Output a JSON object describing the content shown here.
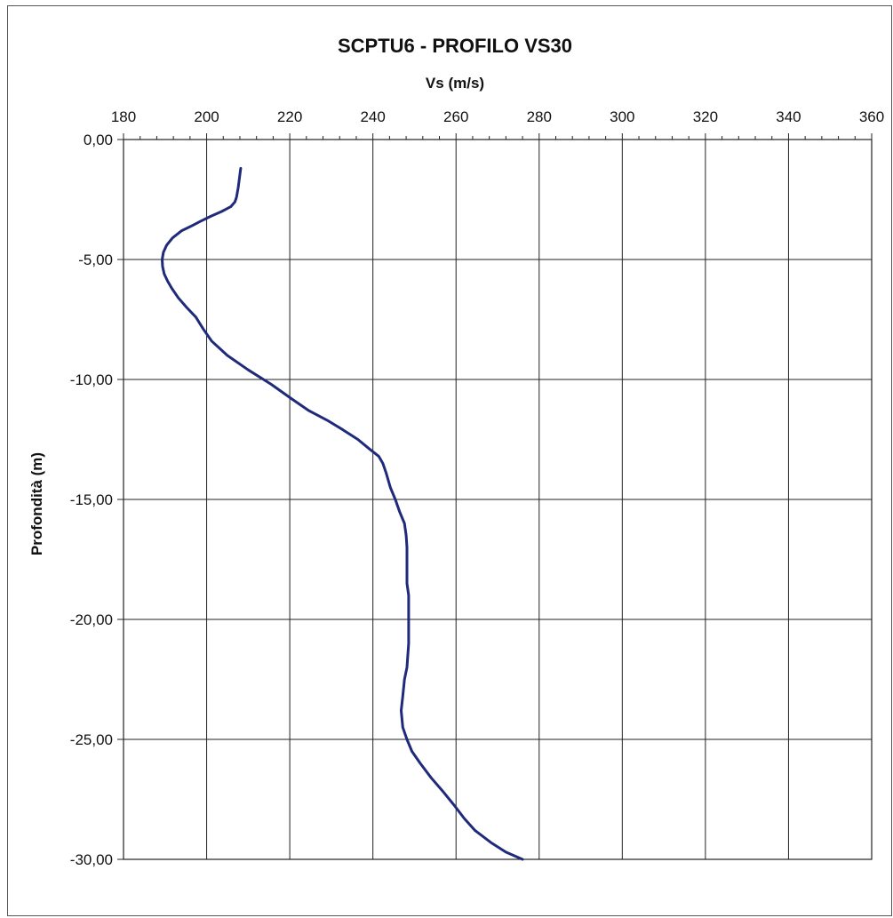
{
  "chart_data": {
    "type": "line",
    "title": "SCPTU6 - PROFILO VS30",
    "xlabel": "Vs (m/s)",
    "ylabel": "Profondità (m)",
    "xlim": [
      180,
      360
    ],
    "ylim": [
      -30,
      0
    ],
    "x_ticks": [
      180,
      200,
      220,
      240,
      260,
      280,
      300,
      320,
      340,
      360
    ],
    "x_tick_labels": [
      "180",
      "200",
      "220",
      "240",
      "260",
      "280",
      "300",
      "320",
      "340",
      "360"
    ],
    "y_ticks": [
      0,
      -5,
      -10,
      -15,
      -20,
      -25,
      -30
    ],
    "y_tick_labels": [
      "0,00",
      "-5,00",
      "-10,00",
      "-15,00",
      "-20,00",
      "-25,00",
      "-30,00"
    ],
    "x_minor_step": 4,
    "grid": true,
    "line_color": "#1f2a7a",
    "series": [
      {
        "x": [
          208.2,
          207.9,
          207.6,
          207.2,
          206.8,
          205.8,
          203.6,
          201.0,
          198.6,
          196.4,
          194.0,
          191.8,
          190.4,
          189.6,
          189.3,
          189.4,
          189.8,
          190.6,
          191.6,
          193.2,
          195.2,
          197.4,
          199.2,
          201.2,
          205.0,
          210.0,
          215.5,
          220.4,
          224.6,
          229.0,
          232.8,
          236.4,
          239.2,
          241.4,
          242.4,
          243.2,
          244.2,
          245.4,
          246.4,
          247.6,
          248.0,
          248.2,
          248.2,
          248.2,
          248.6,
          248.6,
          248.6,
          248.2,
          247.6,
          247.2,
          246.8,
          247.2,
          248.2,
          249.4,
          251.4,
          254.0,
          257.0,
          259.8,
          262.0,
          264.6,
          268.4,
          272.0,
          276.0
        ],
        "y": [
          -1.2,
          -1.6,
          -2.0,
          -2.4,
          -2.6,
          -2.8,
          -3.0,
          -3.2,
          -3.4,
          -3.6,
          -3.8,
          -4.1,
          -4.4,
          -4.7,
          -5.0,
          -5.3,
          -5.6,
          -5.9,
          -6.2,
          -6.6,
          -7.0,
          -7.4,
          -7.9,
          -8.4,
          -9.0,
          -9.6,
          -10.2,
          -10.8,
          -11.3,
          -11.7,
          -12.1,
          -12.5,
          -12.9,
          -13.2,
          -13.5,
          -13.9,
          -14.5,
          -15.0,
          -15.5,
          -16.0,
          -16.5,
          -17.0,
          -18.0,
          -18.5,
          -19.0,
          -20.0,
          -21.0,
          -22.0,
          -22.5,
          -23.2,
          -23.8,
          -24.5,
          -25.0,
          -25.5,
          -26.0,
          -26.6,
          -27.2,
          -27.8,
          -28.3,
          -28.8,
          -29.3,
          -29.7,
          -30.0
        ]
      }
    ]
  }
}
